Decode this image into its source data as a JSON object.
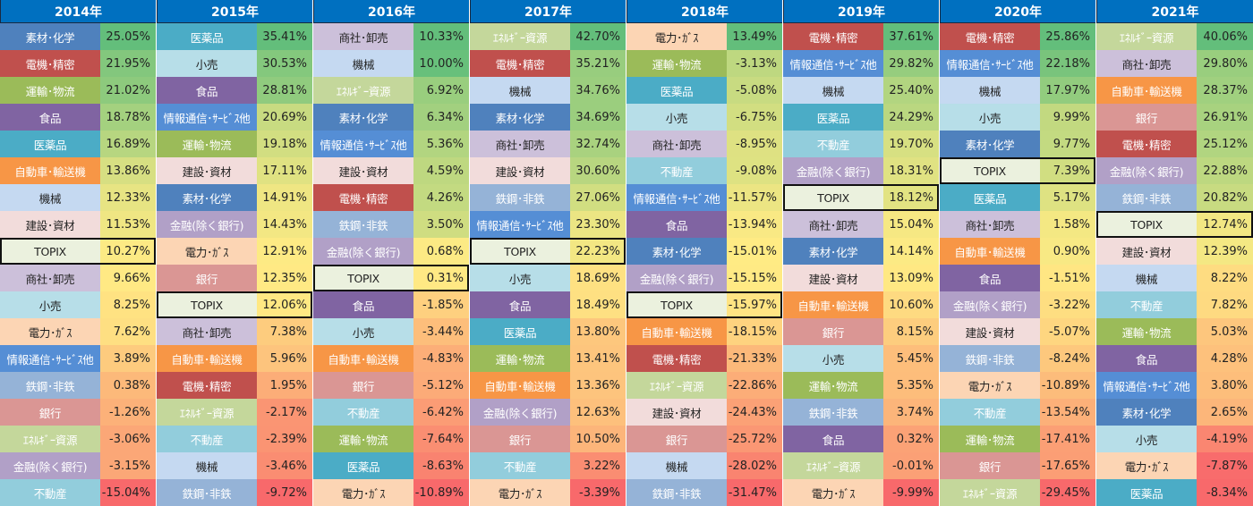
{
  "sector_colors": {
    "素材･化学": {
      "bg": "#4f81bd",
      "fg": "#ffffff"
    },
    "電機･精密": {
      "bg": "#c0504d",
      "fg": "#ffffff"
    },
    "運輸･物流": {
      "bg": "#9bbb59",
      "fg": "#ffffff"
    },
    "食品": {
      "bg": "#8064a2",
      "fg": "#ffffff"
    },
    "医薬品": {
      "bg": "#4bacc6",
      "fg": "#ffffff"
    },
    "自動車･輸送機": {
      "bg": "#f79646",
      "fg": "#ffffff"
    },
    "機械": {
      "bg": "#c5d9f1",
      "fg": "#222222"
    },
    "建設･資材": {
      "bg": "#f2dcdb",
      "fg": "#222222"
    },
    "TOPIX": {
      "bg": "#ebf1de",
      "fg": "#222222"
    },
    "商社･卸売": {
      "bg": "#ccc0da",
      "fg": "#222222"
    },
    "小売": {
      "bg": "#b7dee8",
      "fg": "#222222"
    },
    "電力･ｶﾞｽ": {
      "bg": "#fcd5b4",
      "fg": "#222222"
    },
    "情報通信･ｻｰﾋﾞｽ他": {
      "bg": "#558ed5",
      "fg": "#ffffff"
    },
    "鉄鋼･非鉄": {
      "bg": "#95b3d7",
      "fg": "#ffffff"
    },
    "銀行": {
      "bg": "#da9694",
      "fg": "#ffffff"
    },
    "ｴﾈﾙｷﾞｰ資源": {
      "bg": "#c4d79b",
      "fg": "#ffffff"
    },
    "金融(除く銀行)": {
      "bg": "#b1a0c7",
      "fg": "#ffffff"
    },
    "不動産": {
      "bg": "#92cddc",
      "fg": "#ffffff"
    }
  },
  "value_scale_colors": {
    "high": "#63be7b",
    "mid": "#ffeb84",
    "low": "#f8696b"
  },
  "chart_data": {
    "type": "table",
    "years": [
      {
        "label": "2014年",
        "rows": [
          {
            "sector": "素材･化学",
            "value": "25.05%"
          },
          {
            "sector": "電機･精密",
            "value": "21.95%"
          },
          {
            "sector": "運輸･物流",
            "value": "21.02%"
          },
          {
            "sector": "食品",
            "value": "18.78%"
          },
          {
            "sector": "医薬品",
            "value": "16.89%"
          },
          {
            "sector": "自動車･輸送機",
            "value": "13.86%"
          },
          {
            "sector": "機械",
            "value": "12.33%"
          },
          {
            "sector": "建設･資材",
            "value": "11.53%"
          },
          {
            "sector": "TOPIX",
            "value": "10.27%"
          },
          {
            "sector": "商社･卸売",
            "value": "9.66%"
          },
          {
            "sector": "小売",
            "value": "8.25%"
          },
          {
            "sector": "電力･ｶﾞｽ",
            "value": "7.62%"
          },
          {
            "sector": "情報通信･ｻｰﾋﾞｽ他",
            "value": "3.89%"
          },
          {
            "sector": "鉄鋼･非鉄",
            "value": "0.38%"
          },
          {
            "sector": "銀行",
            "value": "-1.26%"
          },
          {
            "sector": "ｴﾈﾙｷﾞｰ資源",
            "value": "-3.06%"
          },
          {
            "sector": "金融(除く銀行)",
            "value": "-3.15%"
          },
          {
            "sector": "不動産",
            "value": "-15.04%"
          }
        ]
      },
      {
        "label": "2015年",
        "rows": [
          {
            "sector": "医薬品",
            "value": "35.41%"
          },
          {
            "sector": "小売",
            "value": "30.53%"
          },
          {
            "sector": "食品",
            "value": "28.81%"
          },
          {
            "sector": "情報通信･ｻｰﾋﾞｽ他",
            "value": "20.69%"
          },
          {
            "sector": "運輸･物流",
            "value": "19.18%"
          },
          {
            "sector": "建設･資材",
            "value": "17.11%"
          },
          {
            "sector": "素材･化学",
            "value": "14.91%"
          },
          {
            "sector": "金融(除く銀行)",
            "value": "14.43%"
          },
          {
            "sector": "電力･ｶﾞｽ",
            "value": "12.91%"
          },
          {
            "sector": "銀行",
            "value": "12.35%"
          },
          {
            "sector": "TOPIX",
            "value": "12.06%"
          },
          {
            "sector": "商社･卸売",
            "value": "7.38%"
          },
          {
            "sector": "自動車･輸送機",
            "value": "5.96%"
          },
          {
            "sector": "電機･精密",
            "value": "1.95%"
          },
          {
            "sector": "ｴﾈﾙｷﾞｰ資源",
            "value": "-2.17%"
          },
          {
            "sector": "不動産",
            "value": "-2.39%"
          },
          {
            "sector": "機械",
            "value": "-3.46%"
          },
          {
            "sector": "鉄鋼･非鉄",
            "value": "-9.72%"
          }
        ]
      },
      {
        "label": "2016年",
        "rows": [
          {
            "sector": "商社･卸売",
            "value": "10.33%"
          },
          {
            "sector": "機械",
            "value": "10.00%"
          },
          {
            "sector": "ｴﾈﾙｷﾞｰ資源",
            "value": "6.92%"
          },
          {
            "sector": "素材･化学",
            "value": "6.34%"
          },
          {
            "sector": "情報通信･ｻｰﾋﾞｽ他",
            "value": "5.36%"
          },
          {
            "sector": "建設･資材",
            "value": "4.59%"
          },
          {
            "sector": "電機･精密",
            "value": "4.26%"
          },
          {
            "sector": "鉄鋼･非鉄",
            "value": "3.50%"
          },
          {
            "sector": "金融(除く銀行)",
            "value": "0.68%"
          },
          {
            "sector": "TOPIX",
            "value": "0.31%"
          },
          {
            "sector": "食品",
            "value": "-1.85%"
          },
          {
            "sector": "小売",
            "value": "-3.44%"
          },
          {
            "sector": "自動車･輸送機",
            "value": "-4.83%"
          },
          {
            "sector": "銀行",
            "value": "-5.12%"
          },
          {
            "sector": "不動産",
            "value": "-6.42%"
          },
          {
            "sector": "運輸･物流",
            "value": "-7.64%"
          },
          {
            "sector": "医薬品",
            "value": "-8.63%"
          },
          {
            "sector": "電力･ｶﾞｽ",
            "value": "-10.89%"
          }
        ]
      },
      {
        "label": "2017年",
        "rows": [
          {
            "sector": "ｴﾈﾙｷﾞｰ資源",
            "value": "42.70%"
          },
          {
            "sector": "電機･精密",
            "value": "35.21%"
          },
          {
            "sector": "機械",
            "value": "34.76%"
          },
          {
            "sector": "素材･化学",
            "value": "34.69%"
          },
          {
            "sector": "商社･卸売",
            "value": "32.74%"
          },
          {
            "sector": "建設･資材",
            "value": "30.60%"
          },
          {
            "sector": "鉄鋼･非鉄",
            "value": "27.06%"
          },
          {
            "sector": "情報通信･ｻｰﾋﾞｽ他",
            "value": "23.30%"
          },
          {
            "sector": "TOPIX",
            "value": "22.23%"
          },
          {
            "sector": "小売",
            "value": "18.69%"
          },
          {
            "sector": "食品",
            "value": "18.49%"
          },
          {
            "sector": "医薬品",
            "value": "13.80%"
          },
          {
            "sector": "運輸･物流",
            "value": "13.41%"
          },
          {
            "sector": "自動車･輸送機",
            "value": "13.36%"
          },
          {
            "sector": "金融(除く銀行)",
            "value": "12.63%"
          },
          {
            "sector": "銀行",
            "value": "10.50%"
          },
          {
            "sector": "不動産",
            "value": "3.22%"
          },
          {
            "sector": "電力･ｶﾞｽ",
            "value": "-3.39%"
          }
        ]
      },
      {
        "label": "2018年",
        "rows": [
          {
            "sector": "電力･ｶﾞｽ",
            "value": "13.49%"
          },
          {
            "sector": "運輸･物流",
            "value": "-3.13%"
          },
          {
            "sector": "医薬品",
            "value": "-5.08%"
          },
          {
            "sector": "小売",
            "value": "-6.75%"
          },
          {
            "sector": "商社･卸売",
            "value": "-8.95%"
          },
          {
            "sector": "不動産",
            "value": "-9.08%"
          },
          {
            "sector": "情報通信･ｻｰﾋﾞｽ他",
            "value": "-11.57%"
          },
          {
            "sector": "食品",
            "value": "-13.94%"
          },
          {
            "sector": "素材･化学",
            "value": "-15.01%"
          },
          {
            "sector": "金融(除く銀行)",
            "value": "-15.15%"
          },
          {
            "sector": "TOPIX",
            "value": "-15.97%"
          },
          {
            "sector": "自動車･輸送機",
            "value": "-18.15%"
          },
          {
            "sector": "電機･精密",
            "value": "-21.33%"
          },
          {
            "sector": "ｴﾈﾙｷﾞｰ資源",
            "value": "-22.86%"
          },
          {
            "sector": "建設･資材",
            "value": "-24.43%"
          },
          {
            "sector": "銀行",
            "value": "-25.72%"
          },
          {
            "sector": "機械",
            "value": "-28.02%"
          },
          {
            "sector": "鉄鋼･非鉄",
            "value": "-31.47%"
          }
        ]
      },
      {
        "label": "2019年",
        "rows": [
          {
            "sector": "電機･精密",
            "value": "37.61%"
          },
          {
            "sector": "情報通信･ｻｰﾋﾞｽ他",
            "value": "29.82%"
          },
          {
            "sector": "機械",
            "value": "25.40%"
          },
          {
            "sector": "医薬品",
            "value": "24.29%"
          },
          {
            "sector": "不動産",
            "value": "19.70%"
          },
          {
            "sector": "金融(除く銀行)",
            "value": "18.31%"
          },
          {
            "sector": "TOPIX",
            "value": "18.12%"
          },
          {
            "sector": "商社･卸売",
            "value": "15.04%"
          },
          {
            "sector": "素材･化学",
            "value": "14.14%"
          },
          {
            "sector": "建設･資材",
            "value": "13.09%"
          },
          {
            "sector": "自動車･輸送機",
            "value": "10.60%"
          },
          {
            "sector": "銀行",
            "value": "8.15%"
          },
          {
            "sector": "小売",
            "value": "5.45%"
          },
          {
            "sector": "運輸･物流",
            "value": "5.35%"
          },
          {
            "sector": "鉄鋼･非鉄",
            "value": "3.74%"
          },
          {
            "sector": "食品",
            "value": "0.32%"
          },
          {
            "sector": "ｴﾈﾙｷﾞｰ資源",
            "value": "-0.01%"
          },
          {
            "sector": "電力･ｶﾞｽ",
            "value": "-9.99%"
          }
        ]
      },
      {
        "label": "2020年",
        "rows": [
          {
            "sector": "電機･精密",
            "value": "25.86%"
          },
          {
            "sector": "情報通信･ｻｰﾋﾞｽ他",
            "value": "22.18%"
          },
          {
            "sector": "機械",
            "value": "17.97%"
          },
          {
            "sector": "小売",
            "value": "9.99%"
          },
          {
            "sector": "素材･化学",
            "value": "9.77%"
          },
          {
            "sector": "TOPIX",
            "value": "7.39%"
          },
          {
            "sector": "医薬品",
            "value": "5.17%"
          },
          {
            "sector": "商社･卸売",
            "value": "1.58%"
          },
          {
            "sector": "自動車･輸送機",
            "value": "0.90%"
          },
          {
            "sector": "食品",
            "value": "-1.51%"
          },
          {
            "sector": "金融(除く銀行)",
            "value": "-3.22%"
          },
          {
            "sector": "建設･資材",
            "value": "-5.07%"
          },
          {
            "sector": "鉄鋼･非鉄",
            "value": "-8.24%"
          },
          {
            "sector": "電力･ｶﾞｽ",
            "value": "-10.89%"
          },
          {
            "sector": "不動産",
            "value": "-13.54%"
          },
          {
            "sector": "運輸･物流",
            "value": "-17.41%"
          },
          {
            "sector": "銀行",
            "value": "-17.65%"
          },
          {
            "sector": "ｴﾈﾙｷﾞｰ資源",
            "value": "-29.45%"
          }
        ]
      },
      {
        "label": "2021年",
        "rows": [
          {
            "sector": "ｴﾈﾙｷﾞｰ資源",
            "value": "40.06%"
          },
          {
            "sector": "商社･卸売",
            "value": "29.80%"
          },
          {
            "sector": "自動車･輸送機",
            "value": "28.37%"
          },
          {
            "sector": "銀行",
            "value": "26.91%"
          },
          {
            "sector": "電機･精密",
            "value": "25.12%"
          },
          {
            "sector": "金融(除く銀行)",
            "value": "22.88%"
          },
          {
            "sector": "鉄鋼･非鉄",
            "value": "20.82%"
          },
          {
            "sector": "TOPIX",
            "value": "12.74%"
          },
          {
            "sector": "建設･資材",
            "value": "12.39%"
          },
          {
            "sector": "機械",
            "value": "8.22%"
          },
          {
            "sector": "不動産",
            "value": "7.82%"
          },
          {
            "sector": "運輸･物流",
            "value": "5.03%"
          },
          {
            "sector": "食品",
            "value": "4.28%"
          },
          {
            "sector": "情報通信･ｻｰﾋﾞｽ他",
            "value": "3.80%"
          },
          {
            "sector": "素材･化学",
            "value": "2.65%"
          },
          {
            "sector": "小売",
            "value": "-4.19%"
          },
          {
            "sector": "電力･ｶﾞｽ",
            "value": "-7.87%"
          },
          {
            "sector": "医薬品",
            "value": "-8.34%"
          }
        ]
      }
    ]
  }
}
